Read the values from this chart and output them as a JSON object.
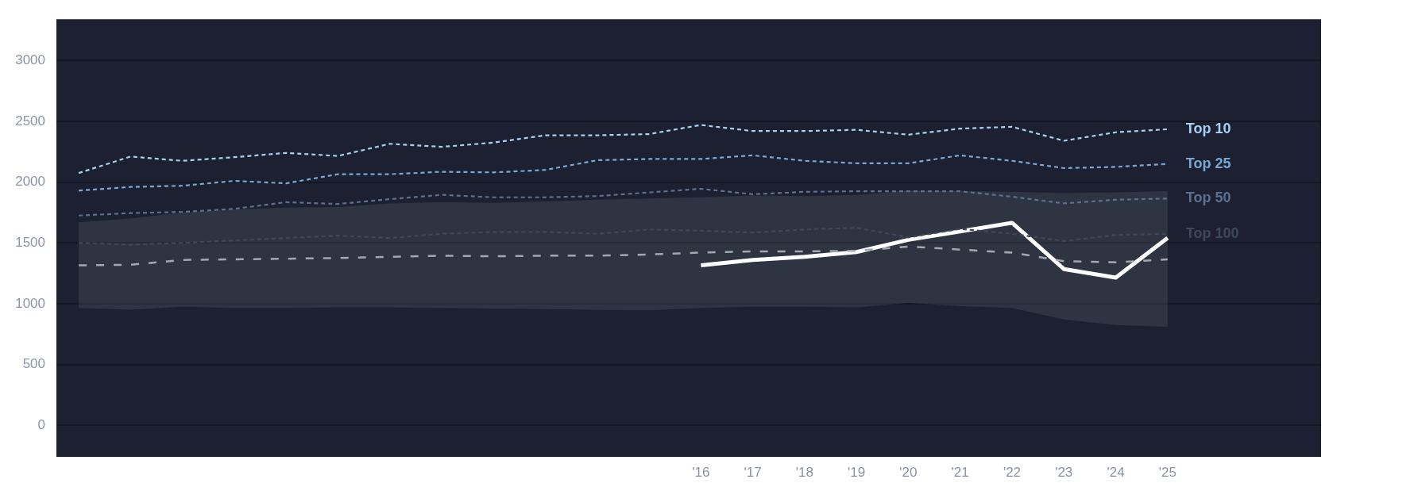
{
  "chart_data": {
    "type": "line",
    "categories": [
      null,
      null,
      null,
      null,
      null,
      null,
      null,
      null,
      null,
      null,
      null,
      null,
      "'16",
      "'17",
      "'18",
      "'19",
      "'20",
      "'21",
      "'22",
      "'23",
      "'24",
      "'25"
    ],
    "series": [
      {
        "name": "Top 10",
        "color": "#a3d2f5",
        "line_style": "dotted",
        "values": [
          2075,
          2210,
          2175,
          2205,
          2240,
          2215,
          2315,
          2290,
          2325,
          2385,
          2385,
          2395,
          2470,
          2420,
          2420,
          2430,
          2390,
          2440,
          2455,
          2340,
          2410,
          2435
        ]
      },
      {
        "name": "Top 25",
        "color": "#78a8d8",
        "line_style": "dotted",
        "values": [
          1930,
          1960,
          1970,
          2010,
          1990,
          2065,
          2065,
          2085,
          2080,
          2100,
          2180,
          2190,
          2190,
          2220,
          2175,
          2155,
          2155,
          2220,
          2175,
          2115,
          2125,
          2150
        ]
      },
      {
        "name": "Top 50",
        "color": "#5a7191",
        "line_style": "dotted",
        "values": [
          1725,
          1745,
          1755,
          1780,
          1835,
          1820,
          1860,
          1895,
          1875,
          1875,
          1885,
          1915,
          1945,
          1900,
          1920,
          1925,
          1925,
          1925,
          1880,
          1825,
          1855,
          1865
        ]
      },
      {
        "name": "Top 100",
        "color": "#3e485c",
        "line_style": "dotted",
        "values": [
          1500,
          1485,
          1500,
          1520,
          1540,
          1560,
          1540,
          1575,
          1590,
          1590,
          1575,
          1610,
          1600,
          1585,
          1610,
          1625,
          1545,
          1615,
          1575,
          1515,
          1565,
          1575
        ]
      },
      {
        "color": "#a4a8b0",
        "line_style": "dashed",
        "values": [
          1315,
          1320,
          1360,
          1365,
          1370,
          1375,
          1385,
          1395,
          1390,
          1395,
          1395,
          1405,
          1420,
          1430,
          1430,
          1435,
          1470,
          1445,
          1420,
          1350,
          1340,
          1365
        ],
        "lower": [
          965,
          950,
          975,
          965,
          965,
          970,
          970,
          965,
          960,
          955,
          950,
          945,
          965,
          975,
          975,
          970,
          1005,
          980,
          965,
          870,
          825,
          810
        ],
        "upper": [
          1670,
          1700,
          1750,
          1775,
          1790,
          1795,
          1825,
          1835,
          1830,
          1840,
          1855,
          1865,
          1875,
          1890,
          1885,
          1895,
          1930,
          1925,
          1920,
          1910,
          1915,
          1925
        ]
      },
      {
        "color": "#ffffff",
        "line_style": "solid",
        "values": [
          null,
          null,
          null,
          null,
          null,
          null,
          null,
          null,
          null,
          null,
          null,
          null,
          1315,
          1360,
          1385,
          1425,
          1525,
          1595,
          1665,
          1285,
          1215,
          1540
        ]
      }
    ],
    "ylim": [
      -260,
      3340
    ],
    "yticks": [
      0,
      500,
      1000,
      1500,
      2000,
      2500,
      3000
    ],
    "grid": "y",
    "marker": "none"
  }
}
